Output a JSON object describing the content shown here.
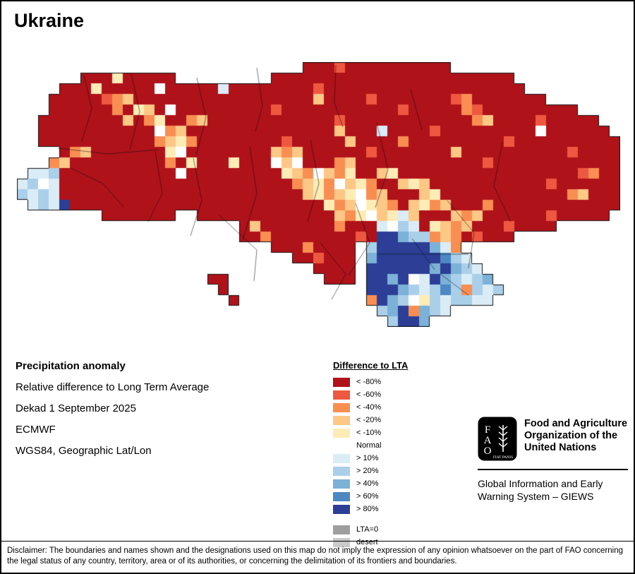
{
  "title": "Ukraine",
  "info": {
    "heading": "Precipitation anomaly",
    "method": "Relative difference to Long Term Average",
    "dekad": "Dekad 1 September 2025",
    "source": "ECMWF",
    "projection": "WGS84, Geographic Lat/Lon"
  },
  "legend": {
    "title": "Difference to LTA",
    "items": [
      {
        "label": "< -80%",
        "color": "#b0121a"
      },
      {
        "label": "< -60%",
        "color": "#ef5840"
      },
      {
        "label": "< -40%",
        "color": "#f98e52"
      },
      {
        "label": "< -20%",
        "color": "#fdc786"
      },
      {
        "label": "< -10%",
        "color": "#feecb7"
      },
      {
        "label": "Normal",
        "color": "#ffffff"
      },
      {
        "label": "> 10%",
        "color": "#daedf7"
      },
      {
        "label": "> 20%",
        "color": "#aacfe9"
      },
      {
        "label": "> 40%",
        "color": "#7cb1d8"
      },
      {
        "label": "> 60%",
        "color": "#4d88c2"
      },
      {
        "label": "> 80%",
        "color": "#2c3e96"
      }
    ],
    "extra_items": [
      {
        "label": "LTA=0",
        "color": "#9e9e9e"
      },
      {
        "label": "desert",
        "color": "#c9c9c9"
      }
    ]
  },
  "branding": {
    "logo_letters": [
      "F",
      "A",
      "O"
    ],
    "logo_motto": "FIAT PANIS",
    "org_lines": [
      "Food and Agriculture",
      "Organization of the",
      "United Nations"
    ],
    "giews_lines": [
      "Global Information and Early",
      "Warning System – GIEWS"
    ]
  },
  "disclaimer": "Disclaimer: The boundaries and names shown and the designations used on this map do not imply the expression of any opinion whatsoever on the part of FAO concerning the legal status of any country, territory, area or of its authorities, or concerning the delimitation of its frontiers and boundaries.",
  "map": {
    "cell_size": 15,
    "palette": {
      "K": "#b0121a",
      "R": "#ef5840",
      "O": "#f98e52",
      "L": "#fdc786",
      "Y": "#feecb7",
      "W": "#ffffff",
      "A": "#daedf7",
      "B": "#aacfe9",
      "C": "#7cb1d8",
      "D": "#4d88c2",
      "E": "#2c3e96",
      "G": "#9e9e9e",
      "g": "#c9c9c9"
    },
    "grid": [
      "...........................KKKRKKKKKKKKKK................",
      "......KKKYKKKKK.........KKKKKKKKKKKKKKKKKKKKKKK..........",
      "....KKKYKKKKKWKKKKKAKKKKKKKKRKKKKKKKKKKKKKKKKKKK.........",
      "...KKKKKROLKKKKKKKKKKKKKKKKKLKKKKRKKKKKKKROKKKKKKK.......",
      "...KKKKKKOKYLKWKKKKKKKKKRKKKKKKKKKKKRKKKKKORKKKKKKKKK....",
      "..KKKKKKKKLKOYKKOLKKKKKKKKKKKKRKKKKKKKKKKKKOLKKKKRKKKKK..",
      "..KKKKKKKKKKKWOLKKKKKKKKKKKKKKLKKKAKKKKRKKKKKKKKKWKKKKKK.",
      "..KKKKKKKKKKKOLYOKKKKKKKKRKKKKKLKKKKOKKKKKKKKKRKKKKKKKKKK",
      "....KOLKKKKKKKYWKKKKKKKKLOLKKKKKKRKKKKKKKLKKKKKKKKKKRKKKK",
      "...OLKKKKKKKKKOKYKKKYKKKWLWKKKOLKKKKKKKKKKKKRKKKKKKKKKKKK",
      ".AABKKKKKKKKKKKWKKKKKKKKKYLOWLOYKKLYKKKKKKKKKKKKKKKKKROKK",
      "ABWAKKKKKKKKKKKKKKKKKKKKKKOLYOWLYOKKLYLKKKKKKKKKKKRKKKKKK",
      "BABAKKKKKKKKKKKKKKKKKKKKKKKLYOLYWOLKKKLYKKKKKKKKKKKKOLKKK",
      ".ABAEKKKKKKKKKKKKKKKKKKKKKKKKYOLWYLOKLYOLKKKOKKKKKKKKKKKK",
      "........KKKKKKK..KKKKKKKKKKKKKLOYWLYALKKKLOLKKKKKKRKKKKK.",
      ".....................KLKKKKKKKOKKKAWBAKYLOLKKKRKKKK......",
      ".....................KKOKKKKKKKKRKEECBBOLOKRKKK..........",
      "........................KKKOKKKK.BEEEEECAO...............",
      "..........................KKRKKK.CEEEEEEDBA..............",
      "............................KKKK.EEEEEECECBA.............",
      "..................KK.........KKK.EECEWAECBABC............",
      "...................K.............EEECBABDBOBAB...........",
      "....................K............OECBWYBABBAA............",
      "..................................BCEOCBA................",
      "...................................BEEC.................."
    ],
    "boundaries": [
      "M95,18 L106,66 L92,112",
      "M162,16 L174,70 L160,124",
      "M255,22 L268,78 L254,132",
      "M340,8 L348,62 L338,98",
      "M452,4 L450,58 L462,92",
      "M558,38 L574,96",
      "M58,122 L130,130 L200,124",
      "M76,150 L122,172 L152,206",
      "M196,126 L206,186 L186,226",
      "M250,136 L262,196 L246,246",
      "M330,120 L340,186 L320,252",
      "M286,216 L340,266 L336,310",
      "M416,110 L428,172 L412,226",
      "M510,86 L526,152 L508,206",
      "M688,114 L676,176 L700,226",
      "M610,196 L648,242 L640,292",
      "M480,200 L500,256 L470,302",
      "M430,256 L466,300 L446,336",
      "M560,250 L592,294",
      "M600,300 L640,330",
      "M512,272 L640,272"
    ]
  }
}
